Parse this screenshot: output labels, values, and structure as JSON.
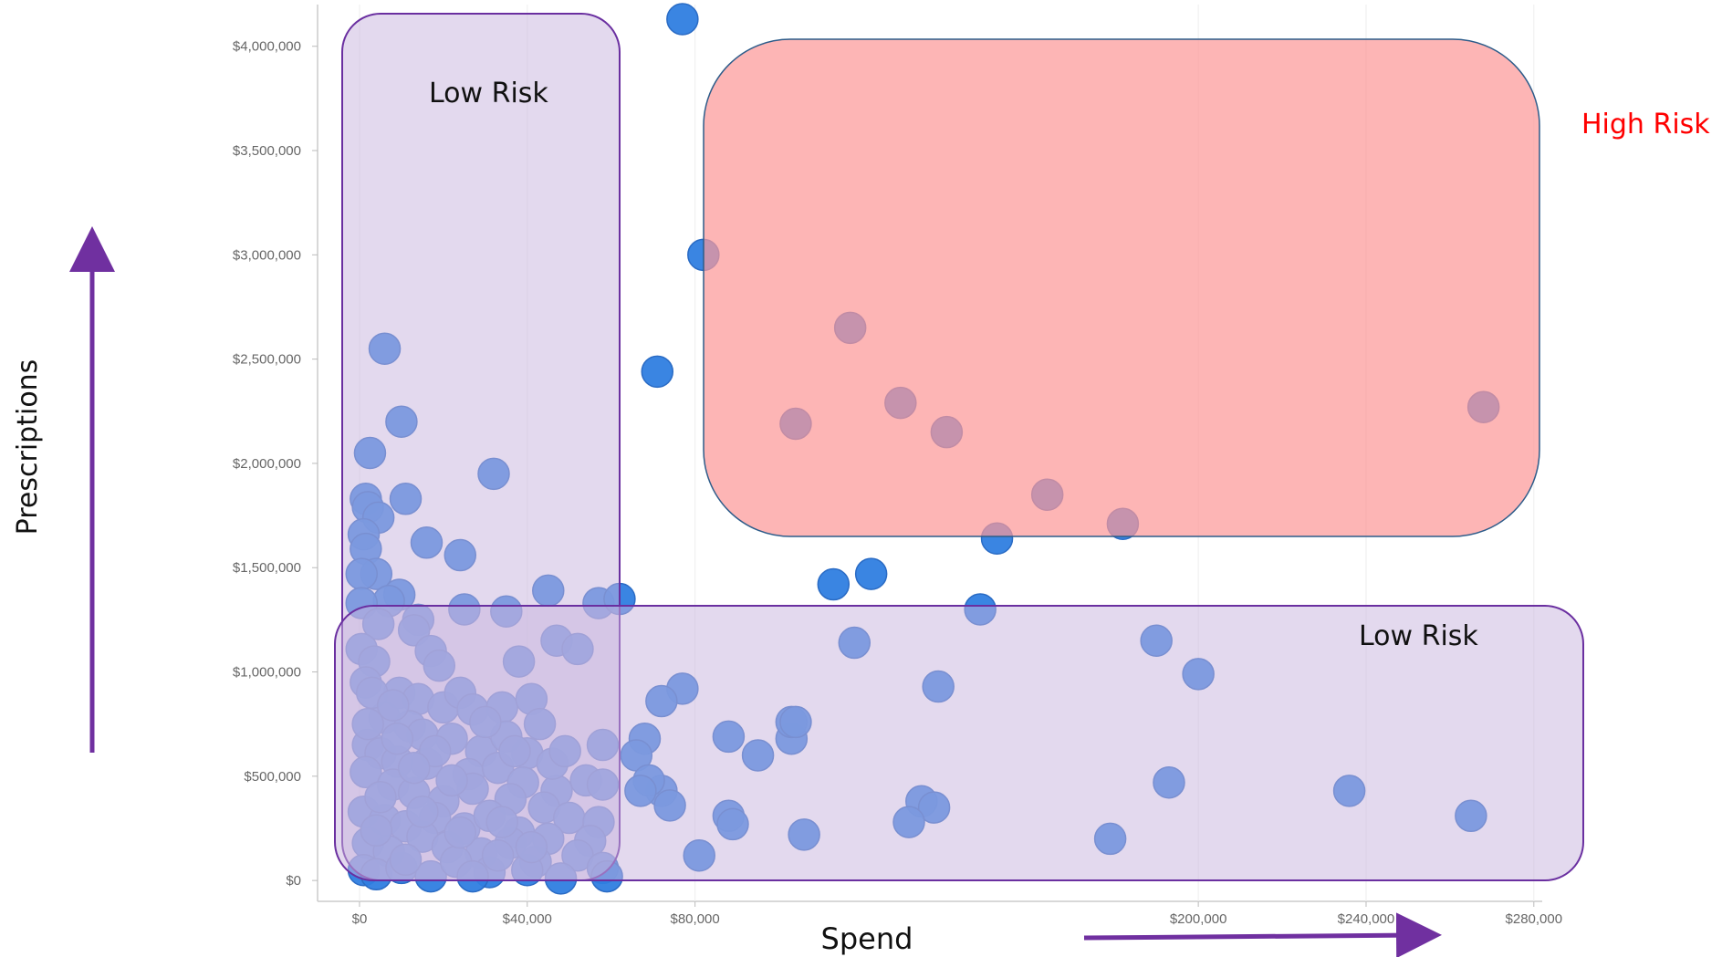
{
  "chart_data": {
    "type": "scatter",
    "title": "",
    "xlabel": "Spend",
    "ylabel": "Prescriptions",
    "xlim": [
      -10000,
      282000
    ],
    "ylim": [
      -100000,
      4200000
    ],
    "x_ticks": [
      0,
      40000,
      80000,
      200000,
      240000,
      280000
    ],
    "x_tick_labels": [
      "$0",
      "$40,000",
      "$80,000",
      "$200,000",
      "$240,000",
      "$280,000"
    ],
    "y_ticks": [
      0,
      500000,
      1000000,
      1500000,
      2000000,
      2500000,
      3000000,
      3500000,
      4000000
    ],
    "y_tick_labels": [
      "$0",
      "$500,000",
      "$1,000,000",
      "$1,500,000",
      "$2,000,000",
      "$2,500,000",
      "$3,000,000",
      "$3,500,000",
      "$4,000,000"
    ],
    "grid": "vertical",
    "legend": "none",
    "points": [
      [
        77000,
        4130000
      ],
      [
        82000,
        3000000
      ],
      [
        71000,
        2440000
      ],
      [
        117000,
        2650000
      ],
      [
        104000,
        2190000
      ],
      [
        129000,
        2290000
      ],
      [
        140000,
        2150000
      ],
      [
        152000,
        1640000
      ],
      [
        164000,
        1850000
      ],
      [
        182000,
        1710000
      ],
      [
        268000,
        2270000
      ],
      [
        113000,
        1420000
      ],
      [
        122000,
        1470000
      ],
      [
        148000,
        1300000
      ],
      [
        118000,
        1140000
      ],
      [
        190000,
        1150000
      ],
      [
        200000,
        990000
      ],
      [
        138000,
        930000
      ],
      [
        77000,
        920000
      ],
      [
        72000,
        860000
      ],
      [
        88000,
        690000
      ],
      [
        95000,
        600000
      ],
      [
        103000,
        680000
      ],
      [
        103000,
        760000
      ],
      [
        104000,
        760000
      ],
      [
        193000,
        470000
      ],
      [
        236000,
        430000
      ],
      [
        265000,
        310000
      ],
      [
        179000,
        200000
      ],
      [
        106000,
        220000
      ],
      [
        88000,
        310000
      ],
      [
        89000,
        270000
      ],
      [
        81000,
        120000
      ],
      [
        134000,
        380000
      ],
      [
        137000,
        350000
      ],
      [
        131000,
        280000
      ],
      [
        72000,
        430000
      ],
      [
        74000,
        360000
      ],
      [
        68000,
        680000
      ],
      [
        66000,
        600000
      ],
      [
        69000,
        480000
      ],
      [
        67000,
        430000
      ],
      [
        6000,
        2550000
      ],
      [
        10000,
        2200000
      ],
      [
        2500,
        2050000
      ],
      [
        32000,
        1950000
      ],
      [
        11000,
        1830000
      ],
      [
        1500,
        1830000
      ],
      [
        2000,
        1790000
      ],
      [
        4500,
        1740000
      ],
      [
        1000,
        1660000
      ],
      [
        1500,
        1590000
      ],
      [
        16000,
        1620000
      ],
      [
        24000,
        1560000
      ],
      [
        4000,
        1470000
      ],
      [
        500,
        1470000
      ],
      [
        9500,
        1370000
      ],
      [
        7000,
        1340000
      ],
      [
        500,
        1330000
      ],
      [
        14000,
        1250000
      ],
      [
        25000,
        1300000
      ],
      [
        35000,
        1290000
      ],
      [
        45000,
        1390000
      ],
      [
        57000,
        1330000
      ],
      [
        62000,
        1350000
      ],
      [
        47000,
        1150000
      ],
      [
        52000,
        1110000
      ],
      [
        4500,
        1230000
      ],
      [
        13000,
        1200000
      ],
      [
        17000,
        1100000
      ],
      [
        19000,
        1030000
      ],
      [
        38000,
        1050000
      ],
      [
        500,
        1110000
      ],
      [
        3500,
        1050000
      ],
      [
        1500,
        950000
      ],
      [
        9500,
        900000
      ],
      [
        14000,
        870000
      ],
      [
        20000,
        830000
      ],
      [
        24000,
        900000
      ],
      [
        27000,
        820000
      ],
      [
        34000,
        830000
      ],
      [
        41000,
        870000
      ],
      [
        43000,
        750000
      ],
      [
        58000,
        650000
      ],
      [
        6000,
        780000
      ],
      [
        12000,
        740000
      ],
      [
        15000,
        700000
      ],
      [
        22000,
        680000
      ],
      [
        29000,
        620000
      ],
      [
        35000,
        690000
      ],
      [
        40000,
        610000
      ],
      [
        2000,
        650000
      ],
      [
        5000,
        610000
      ],
      [
        9000,
        570000
      ],
      [
        16000,
        560000
      ],
      [
        26000,
        510000
      ],
      [
        33000,
        540000
      ],
      [
        39000,
        470000
      ],
      [
        47000,
        430000
      ],
      [
        54000,
        480000
      ],
      [
        58000,
        460000
      ],
      [
        1500,
        520000
      ],
      [
        8000,
        460000
      ],
      [
        13000,
        420000
      ],
      [
        20000,
        380000
      ],
      [
        27000,
        440000
      ],
      [
        36000,
        390000
      ],
      [
        44000,
        350000
      ],
      [
        50000,
        300000
      ],
      [
        57000,
        280000
      ],
      [
        1000,
        330000
      ],
      [
        6000,
        290000
      ],
      [
        11000,
        260000
      ],
      [
        18000,
        300000
      ],
      [
        25000,
        250000
      ],
      [
        31000,
        310000
      ],
      [
        38000,
        230000
      ],
      [
        45000,
        200000
      ],
      [
        55000,
        190000
      ],
      [
        2000,
        180000
      ],
      [
        7000,
        140000
      ],
      [
        15000,
        210000
      ],
      [
        21000,
        160000
      ],
      [
        29000,
        130000
      ],
      [
        36000,
        180000
      ],
      [
        42000,
        90000
      ],
      [
        52000,
        120000
      ],
      [
        58000,
        60000
      ],
      [
        59000,
        20000
      ],
      [
        1000,
        50000
      ],
      [
        4000,
        30000
      ],
      [
        10000,
        60000
      ],
      [
        17000,
        20000
      ],
      [
        23000,
        90000
      ],
      [
        31000,
        40000
      ],
      [
        40000,
        50000
      ],
      [
        48000,
        10000
      ],
      [
        3000,
        900000
      ],
      [
        8000,
        840000
      ],
      [
        18000,
        620000
      ],
      [
        30000,
        760000
      ],
      [
        46000,
        560000
      ],
      [
        5000,
        400000
      ],
      [
        22000,
        480000
      ],
      [
        34000,
        280000
      ],
      [
        11000,
        100000
      ],
      [
        27000,
        20000
      ],
      [
        2000,
        750000
      ],
      [
        9000,
        680000
      ],
      [
        15000,
        330000
      ],
      [
        37000,
        620000
      ],
      [
        49000,
        620000
      ],
      [
        24000,
        230000
      ],
      [
        4000,
        240000
      ],
      [
        13000,
        540000
      ],
      [
        41000,
        160000
      ],
      [
        33000,
        120000
      ]
    ],
    "annotations": {
      "low_risk_label": "Low Risk",
      "low_risk_label_2": "Low Risk",
      "high_risk_label": "High Risk"
    },
    "colors": {
      "point_fill": "#2f7ee0",
      "point_stroke": "#2a6bc4",
      "low_risk_fill": "#c8b4de",
      "low_risk_stroke": "#6a2fa0",
      "high_risk_fill": "#fc9898",
      "high_risk_stroke": "#2d5c8a",
      "high_risk_text": "#ff0000",
      "arrow": "#7030a0",
      "axis": "#cccccc",
      "tick_text": "#666666"
    }
  }
}
